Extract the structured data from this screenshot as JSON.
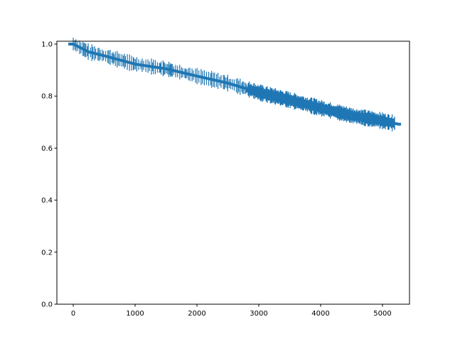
{
  "chart_data": {
    "type": "line",
    "style": "step survival curve with censor tick marks",
    "color": "#1f77b4",
    "title": "",
    "xlabel": "",
    "ylabel": "",
    "xlim": [
      -265,
      5437
    ],
    "ylim": [
      0,
      1.011
    ],
    "xticks": [
      0,
      1000,
      2000,
      3000,
      4000,
      5000
    ],
    "xtick_labels": [
      "0",
      "1000",
      "2000",
      "3000",
      "4000",
      "5000"
    ],
    "yticks": [
      0.0,
      0.2,
      0.4,
      0.6,
      0.8,
      1.0
    ],
    "ytick_labels": [
      "0.0",
      "0.2",
      "0.4",
      "0.6",
      "0.8",
      "1.0"
    ],
    "grid": false,
    "series": [
      {
        "x": [
          0,
          250,
          500,
          1000,
          1500,
          2000,
          2500,
          3000,
          3500,
          4000,
          4500,
          5000,
          5260
        ],
        "y": [
          1.0,
          0.97,
          0.955,
          0.923,
          0.905,
          0.877,
          0.85,
          0.814,
          0.785,
          0.754,
          0.725,
          0.705,
          0.692
        ]
      }
    ]
  }
}
